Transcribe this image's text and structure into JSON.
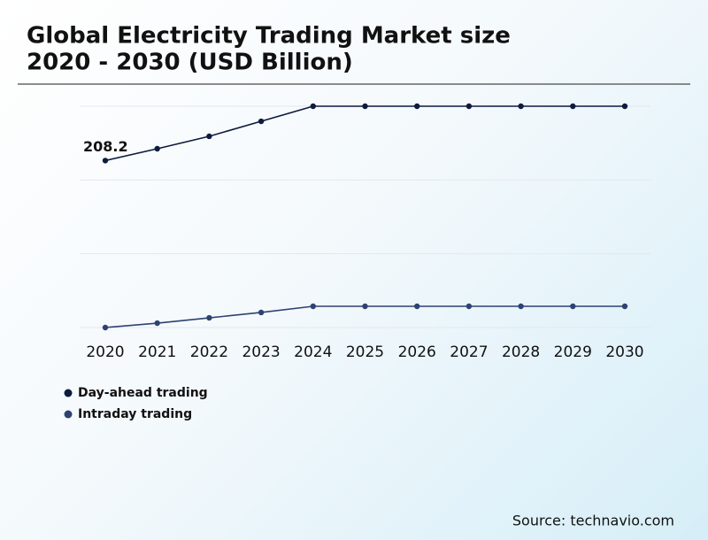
{
  "chart_data": {
    "type": "line",
    "title": "Global Electricity Trading Market size",
    "subtitle": "2020 - 2030 (USD Billion)",
    "source": "Source: technavio.com",
    "categories": [
      "2020",
      "2021",
      "2022",
      "2023",
      "2024",
      "2025",
      "2026",
      "2027",
      "2028",
      "2029",
      "2030"
    ],
    "series": [
      {
        "name": "Day-ahead trading",
        "color": "#0d1b3e",
        "values": [
          208.2,
          223.0,
          238.5,
          257.2,
          276,
          276,
          276,
          276,
          276,
          276,
          276
        ]
      },
      {
        "name": "Intraday trading",
        "color": "#2e4272",
        "values": [
          0,
          5.5,
          12.1,
          18.8,
          26.5,
          26.5,
          26.5,
          26.5,
          26.5,
          26.5,
          26.5
        ]
      }
    ],
    "ylim": [
      0,
      276
    ],
    "yticks": [
      0,
      92,
      184,
      276
    ],
    "grid": true
  }
}
